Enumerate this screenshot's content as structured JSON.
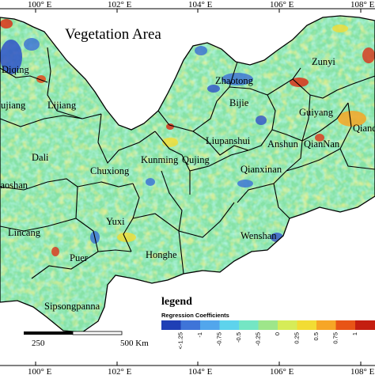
{
  "map": {
    "title": "Vegetation Area",
    "top_ticks": [
      "100° E",
      "102° E",
      "104° E",
      "106° E",
      "108° E"
    ],
    "bottom_ticks": [
      "100° E",
      "102° E",
      "104° E",
      "106° E",
      "108° E"
    ],
    "regions": [
      "Diqing",
      "Nujiang",
      "Lijiang",
      "Dali",
      "Baoshan",
      "Lincang",
      "Puer",
      "Sipsongpanna",
      "Chuxiong",
      "Kunming",
      "Qujing",
      "Yuxi",
      "Honghe",
      "Wenshan",
      "Zhaotong",
      "Bijie",
      "Zunyi",
      "Guiyang",
      "Liupanshui",
      "Anshun",
      "QianNan",
      "Qiandong",
      "Qianxinan"
    ],
    "scale_bar": {
      "mid_label": "250",
      "end_label": "500 Km"
    }
  },
  "legend": {
    "heading": "legend",
    "title": "Regression Coefficients",
    "stops": [
      "<-1.25",
      "-1",
      "-0.75",
      "-0.5",
      "-0.25",
      "0",
      "0.25",
      "0.5",
      "0.75",
      "1"
    ],
    "colors": [
      "#1f3fb5",
      "#3f74d8",
      "#52a6ec",
      "#5ed3ec",
      "#74e6c4",
      "#9ee68a",
      "#d6ec58",
      "#f2dc34",
      "#f6a626",
      "#e85416",
      "#c41e10"
    ]
  }
}
